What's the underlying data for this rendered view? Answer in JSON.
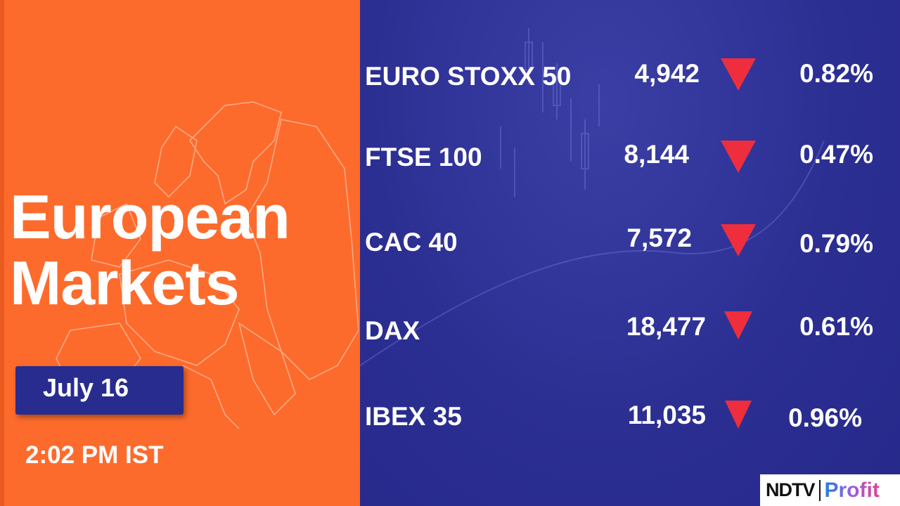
{
  "title": {
    "line1": "European",
    "line2": "Markets"
  },
  "date": "July 16",
  "time": "2:02 PM IST",
  "colors": {
    "left_panel": "#fd6b2c",
    "right_panel": "#2a2d8f",
    "down_arrow": "#ee2e3d"
  },
  "indices": [
    {
      "name": "EURO STOXX 50",
      "value": "4,942",
      "direction": "down",
      "change": "0.82%"
    },
    {
      "name": "FTSE 100",
      "value": "8,144",
      "direction": "down",
      "change": "0.47%"
    },
    {
      "name": "CAC 40",
      "value": "7,572",
      "direction": "down",
      "change": "0.79%"
    },
    {
      "name": "DAX",
      "value": "18,477",
      "direction": "down",
      "change": "0.61%"
    },
    {
      "name": "IBEX 35",
      "value": "11,035",
      "direction": "down",
      "change": "0.96%"
    }
  ],
  "logo": {
    "brand": "NDTV",
    "product": "Profit"
  }
}
